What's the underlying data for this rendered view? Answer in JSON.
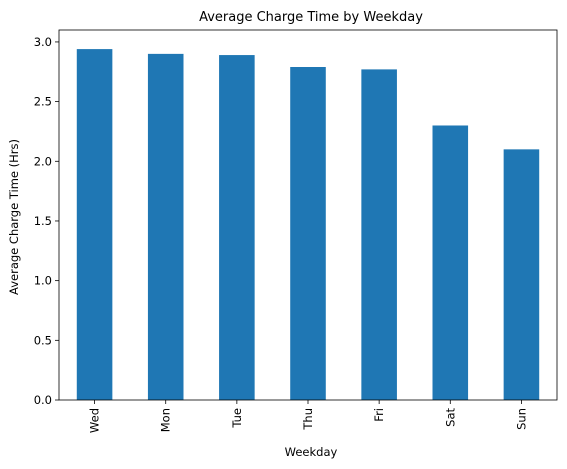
{
  "chart_data": {
    "type": "bar",
    "title": "Average Charge Time by Weekday",
    "xlabel": "Weekday",
    "ylabel": "Average Charge Time (Hrs)",
    "categories": [
      "Wed",
      "Mon",
      "Tue",
      "Thu",
      "Fri",
      "Sat",
      "Sun"
    ],
    "values": [
      2.94,
      2.9,
      2.89,
      2.79,
      2.77,
      2.3,
      2.1
    ],
    "ylim": [
      0,
      3.1
    ],
    "yticks": [
      0.0,
      0.5,
      1.0,
      1.5,
      2.0,
      2.5,
      3.0
    ],
    "ytick_labels": [
      "0.0",
      "0.5",
      "1.0",
      "1.5",
      "2.0",
      "2.5",
      "3.0"
    ],
    "bar_color": "#1f77b4",
    "grid": false,
    "legend": "none"
  }
}
